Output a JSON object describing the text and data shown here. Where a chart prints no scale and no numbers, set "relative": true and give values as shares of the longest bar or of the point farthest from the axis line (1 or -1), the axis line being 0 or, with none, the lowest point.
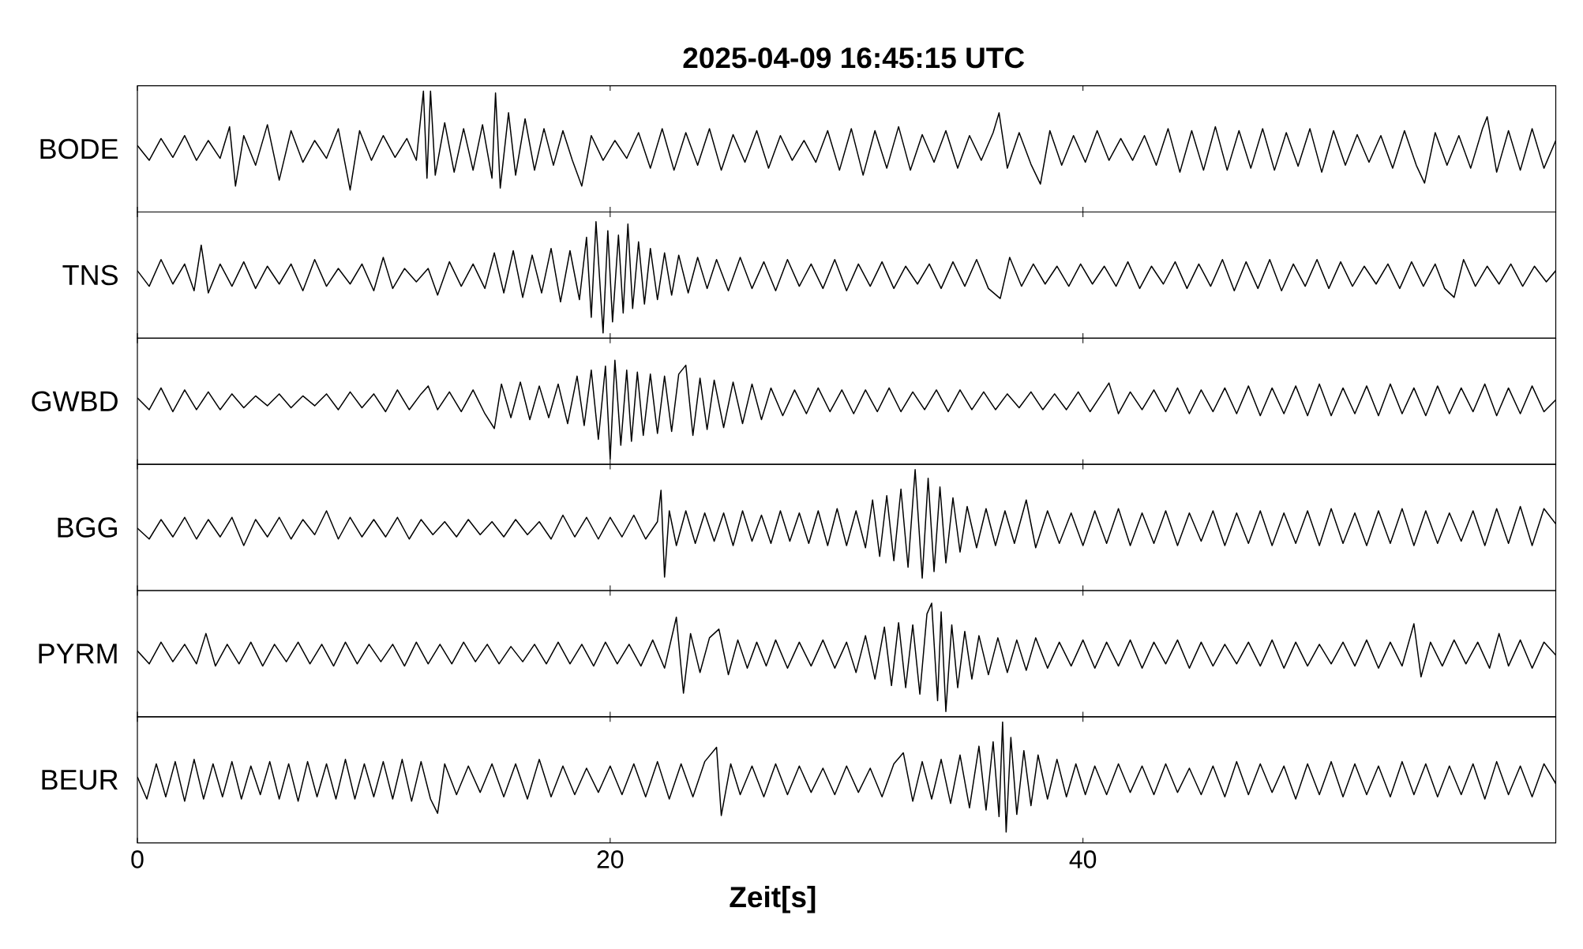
{
  "chart_data": [
    {
      "type": "line",
      "title": "2025-04-09 16:45:15 UTC",
      "ylabel": "BODE",
      "relative": true,
      "xlim": [
        0,
        60
      ],
      "xticks": [
        0,
        20,
        40
      ],
      "tick_labels": false,
      "color": "#000000",
      "x": [
        0,
        0.5,
        1.0,
        1.5,
        2.0,
        2.5,
        3.0,
        3.5,
        3.9,
        4.15,
        4.5,
        5.0,
        5.5,
        6.0,
        6.5,
        7.0,
        7.5,
        8.0,
        8.5,
        9.0,
        9.4,
        9.9,
        10.4,
        10.9,
        11.4,
        11.8,
        12.1,
        12.25,
        12.4,
        12.6,
        13.0,
        13.4,
        13.8,
        14.2,
        14.6,
        15.0,
        15.15,
        15.35,
        15.7,
        16.0,
        16.4,
        16.8,
        17.2,
        17.6,
        18.0,
        18.4,
        18.8,
        19.2,
        19.7,
        20.2,
        20.7,
        21.2,
        21.7,
        22.2,
        22.7,
        23.2,
        23.7,
        24.2,
        24.7,
        25.2,
        25.7,
        26.2,
        26.7,
        27.2,
        27.7,
        28.2,
        28.7,
        29.2,
        29.7,
        30.2,
        30.7,
        31.2,
        31.7,
        32.2,
        32.7,
        33.2,
        33.7,
        34.2,
        34.7,
        35.2,
        35.7,
        36.2,
        36.45,
        36.8,
        37.3,
        37.8,
        38.2,
        38.6,
        39.1,
        39.6,
        40.1,
        40.6,
        41.1,
        41.6,
        42.1,
        42.6,
        43.1,
        43.6,
        44.1,
        44.6,
        45.1,
        45.6,
        46.1,
        46.6,
        47.1,
        47.6,
        48.1,
        48.6,
        49.1,
        49.6,
        50.1,
        50.6,
        51.1,
        51.6,
        52.1,
        52.6,
        53.1,
        53.6,
        54.1,
        54.45,
        54.9,
        55.4,
        55.9,
        56.4,
        56.9,
        57.1,
        57.5,
        58.0,
        58.5,
        59.0,
        59.5,
        60
      ],
      "values": [
        0.45,
        0.3,
        0.52,
        0.33,
        0.55,
        0.3,
        0.5,
        0.32,
        0.64,
        0.04,
        0.55,
        0.25,
        0.66,
        0.1,
        0.6,
        0.28,
        0.5,
        0.32,
        0.62,
        0.0,
        0.6,
        0.3,
        0.55,
        0.33,
        0.52,
        0.3,
        1.0,
        0.12,
        1.0,
        0.15,
        0.68,
        0.18,
        0.62,
        0.2,
        0.66,
        0.12,
        0.98,
        0.02,
        0.78,
        0.15,
        0.72,
        0.2,
        0.62,
        0.25,
        0.6,
        0.3,
        0.04,
        0.55,
        0.3,
        0.5,
        0.32,
        0.58,
        0.22,
        0.62,
        0.2,
        0.58,
        0.25,
        0.62,
        0.2,
        0.56,
        0.28,
        0.6,
        0.22,
        0.55,
        0.3,
        0.5,
        0.28,
        0.6,
        0.2,
        0.62,
        0.15,
        0.6,
        0.22,
        0.64,
        0.2,
        0.56,
        0.28,
        0.6,
        0.22,
        0.55,
        0.3,
        0.58,
        0.78,
        0.22,
        0.58,
        0.26,
        0.06,
        0.6,
        0.25,
        0.55,
        0.28,
        0.6,
        0.3,
        0.52,
        0.3,
        0.55,
        0.25,
        0.62,
        0.18,
        0.6,
        0.2,
        0.64,
        0.2,
        0.6,
        0.22,
        0.62,
        0.2,
        0.58,
        0.24,
        0.62,
        0.18,
        0.6,
        0.25,
        0.56,
        0.28,
        0.55,
        0.22,
        0.6,
        0.25,
        0.07,
        0.58,
        0.25,
        0.55,
        0.22,
        0.62,
        0.74,
        0.18,
        0.6,
        0.2,
        0.62,
        0.22,
        0.5
      ]
    },
    {
      "type": "line",
      "ylabel": "TNS",
      "relative": true,
      "xlim": [
        0,
        60
      ],
      "xticks": [
        0,
        20,
        40
      ],
      "tick_labels": false,
      "color": "#000000",
      "x": [
        0,
        0.5,
        1.0,
        1.5,
        2.0,
        2.4,
        2.7,
        3.0,
        3.5,
        4.0,
        4.5,
        5.0,
        5.5,
        6.0,
        6.5,
        7.0,
        7.5,
        8.0,
        8.5,
        9.0,
        9.5,
        10.0,
        10.4,
        10.8,
        11.3,
        11.8,
        12.3,
        12.7,
        13.2,
        13.7,
        14.2,
        14.7,
        15.1,
        15.5,
        15.9,
        16.3,
        16.7,
        17.1,
        17.5,
        17.9,
        18.3,
        18.7,
        19.0,
        19.2,
        19.4,
        19.7,
        19.9,
        20.1,
        20.35,
        20.55,
        20.75,
        20.95,
        21.2,
        21.45,
        21.7,
        22.0,
        22.3,
        22.6,
        22.9,
        23.3,
        23.7,
        24.1,
        24.5,
        25.0,
        25.5,
        26.0,
        26.5,
        27.0,
        27.5,
        28.0,
        28.5,
        29.0,
        29.5,
        30.0,
        30.5,
        31.0,
        31.5,
        32.0,
        32.5,
        33.0,
        33.5,
        34.0,
        34.5,
        35.0,
        35.5,
        36.0,
        36.5,
        36.9,
        37.4,
        37.9,
        38.4,
        38.9,
        39.4,
        39.9,
        40.4,
        40.9,
        41.4,
        41.9,
        42.4,
        42.9,
        43.4,
        43.9,
        44.4,
        44.9,
        45.4,
        45.9,
        46.4,
        46.9,
        47.4,
        47.9,
        48.4,
        48.9,
        49.4,
        49.9,
        50.4,
        50.9,
        51.4,
        51.9,
        52.4,
        52.9,
        53.4,
        53.9,
        54.4,
        54.9,
        55.3,
        55.7,
        56.1,
        56.6,
        57.1,
        57.6,
        58.1,
        58.6,
        59.1,
        59.6,
        60
      ],
      "values": [
        0.56,
        0.42,
        0.66,
        0.44,
        0.62,
        0.38,
        0.79,
        0.36,
        0.62,
        0.42,
        0.64,
        0.4,
        0.6,
        0.44,
        0.62,
        0.38,
        0.66,
        0.42,
        0.58,
        0.44,
        0.62,
        0.38,
        0.68,
        0.4,
        0.58,
        0.46,
        0.58,
        0.34,
        0.64,
        0.42,
        0.62,
        0.4,
        0.72,
        0.36,
        0.74,
        0.32,
        0.7,
        0.36,
        0.76,
        0.28,
        0.74,
        0.3,
        0.86,
        0.14,
        1.0,
        0.0,
        0.92,
        0.1,
        0.88,
        0.18,
        0.98,
        0.22,
        0.82,
        0.26,
        0.76,
        0.3,
        0.72,
        0.34,
        0.7,
        0.36,
        0.68,
        0.4,
        0.66,
        0.38,
        0.68,
        0.4,
        0.64,
        0.38,
        0.66,
        0.42,
        0.62,
        0.4,
        0.66,
        0.38,
        0.62,
        0.42,
        0.64,
        0.4,
        0.6,
        0.44,
        0.62,
        0.4,
        0.64,
        0.42,
        0.66,
        0.4,
        0.31,
        0.68,
        0.42,
        0.62,
        0.44,
        0.6,
        0.42,
        0.62,
        0.44,
        0.6,
        0.42,
        0.64,
        0.4,
        0.6,
        0.44,
        0.64,
        0.4,
        0.62,
        0.42,
        0.66,
        0.38,
        0.64,
        0.4,
        0.66,
        0.38,
        0.62,
        0.42,
        0.66,
        0.4,
        0.64,
        0.42,
        0.6,
        0.44,
        0.62,
        0.4,
        0.64,
        0.42,
        0.62,
        0.4,
        0.32,
        0.66,
        0.42,
        0.6,
        0.44,
        0.62,
        0.42,
        0.6,
        0.46,
        0.56
      ]
    },
    {
      "type": "line",
      "ylabel": "GWBD",
      "relative": true,
      "xlim": [
        0,
        60
      ],
      "xticks": [
        0,
        20,
        40
      ],
      "tick_labels": false,
      "color": "#000000",
      "x": [
        0,
        0.5,
        1.0,
        1.5,
        2.0,
        2.5,
        3.0,
        3.5,
        4.0,
        4.5,
        5.0,
        5.5,
        6.0,
        6.5,
        7.0,
        7.5,
        8.0,
        8.5,
        9.0,
        9.5,
        10.0,
        10.5,
        11.0,
        11.5,
        12.0,
        12.3,
        12.7,
        13.2,
        13.7,
        14.2,
        14.7,
        15.1,
        15.4,
        15.8,
        16.2,
        16.6,
        17.0,
        17.4,
        17.8,
        18.2,
        18.6,
        18.9,
        19.2,
        19.5,
        19.8,
        20.0,
        20.2,
        20.45,
        20.7,
        20.9,
        21.15,
        21.4,
        21.7,
        22.0,
        22.3,
        22.6,
        22.9,
        23.2,
        23.5,
        23.8,
        24.1,
        24.4,
        24.8,
        25.2,
        25.6,
        26.0,
        26.4,
        26.8,
        27.3,
        27.8,
        28.3,
        28.8,
        29.3,
        29.8,
        30.3,
        30.8,
        31.3,
        31.8,
        32.3,
        32.8,
        33.3,
        33.8,
        34.3,
        34.8,
        35.3,
        35.8,
        36.3,
        36.8,
        37.3,
        37.8,
        38.3,
        38.8,
        39.3,
        39.8,
        40.3,
        40.8,
        41.1,
        41.5,
        42.0,
        42.5,
        43.0,
        43.5,
        44.0,
        44.5,
        45.0,
        45.5,
        46.0,
        46.5,
        47.0,
        47.5,
        48.0,
        48.5,
        49.0,
        49.5,
        50.0,
        50.5,
        51.0,
        51.5,
        52.0,
        52.5,
        53.0,
        53.5,
        54.0,
        54.5,
        55.0,
        55.5,
        56.0,
        56.5,
        57.0,
        57.5,
        58.0,
        58.5,
        59.0,
        59.5,
        60
      ],
      "values": [
        0.62,
        0.5,
        0.72,
        0.48,
        0.7,
        0.5,
        0.68,
        0.5,
        0.66,
        0.52,
        0.64,
        0.54,
        0.66,
        0.52,
        0.64,
        0.54,
        0.66,
        0.5,
        0.68,
        0.52,
        0.66,
        0.48,
        0.7,
        0.5,
        0.66,
        0.74,
        0.5,
        0.68,
        0.48,
        0.7,
        0.46,
        0.31,
        0.76,
        0.42,
        0.78,
        0.4,
        0.74,
        0.42,
        0.76,
        0.36,
        0.84,
        0.34,
        0.9,
        0.2,
        0.94,
        0.0,
        1.0,
        0.14,
        0.9,
        0.18,
        0.88,
        0.24,
        0.86,
        0.26,
        0.84,
        0.28,
        0.86,
        0.95,
        0.24,
        0.82,
        0.3,
        0.8,
        0.32,
        0.78,
        0.36,
        0.76,
        0.4,
        0.72,
        0.44,
        0.7,
        0.46,
        0.72,
        0.48,
        0.7,
        0.46,
        0.7,
        0.48,
        0.72,
        0.48,
        0.68,
        0.5,
        0.7,
        0.48,
        0.7,
        0.5,
        0.68,
        0.5,
        0.66,
        0.52,
        0.68,
        0.5,
        0.66,
        0.5,
        0.68,
        0.48,
        0.66,
        0.77,
        0.46,
        0.68,
        0.5,
        0.7,
        0.48,
        0.72,
        0.46,
        0.7,
        0.48,
        0.72,
        0.46,
        0.74,
        0.44,
        0.72,
        0.46,
        0.74,
        0.44,
        0.76,
        0.44,
        0.72,
        0.46,
        0.74,
        0.44,
        0.76,
        0.46,
        0.72,
        0.44,
        0.74,
        0.46,
        0.72,
        0.48,
        0.76,
        0.44,
        0.72,
        0.46,
        0.74,
        0.48,
        0.6
      ]
    },
    {
      "type": "line",
      "ylabel": "BGG",
      "relative": true,
      "xlim": [
        0,
        60
      ],
      "xticks": [
        0,
        20,
        40
      ],
      "tick_labels": false,
      "color": "#000000",
      "x": [
        0,
        0.5,
        1.0,
        1.5,
        2.0,
        2.5,
        3.0,
        3.5,
        4.0,
        4.5,
        5.0,
        5.5,
        6.0,
        6.5,
        7.0,
        7.5,
        8.0,
        8.5,
        9.0,
        9.5,
        10.0,
        10.5,
        11.0,
        11.5,
        12.0,
        12.5,
        13.0,
        13.5,
        14.0,
        14.5,
        15.0,
        15.5,
        16.0,
        16.5,
        17.0,
        17.5,
        18.0,
        18.5,
        19.0,
        19.5,
        20.0,
        20.5,
        21.0,
        21.5,
        22.0,
        22.15,
        22.3,
        22.5,
        22.8,
        23.2,
        23.6,
        24.0,
        24.4,
        24.8,
        25.2,
        25.6,
        26.0,
        26.4,
        26.8,
        27.2,
        27.6,
        28.0,
        28.4,
        28.8,
        29.2,
        29.6,
        30.0,
        30.4,
        30.8,
        31.1,
        31.4,
        31.7,
        32.0,
        32.3,
        32.6,
        32.9,
        33.2,
        33.45,
        33.7,
        33.95,
        34.2,
        34.5,
        34.8,
        35.1,
        35.5,
        35.9,
        36.3,
        36.7,
        37.1,
        37.6,
        38.0,
        38.5,
        39.0,
        39.5,
        40.0,
        40.5,
        41.0,
        41.5,
        42.0,
        42.5,
        43.0,
        43.5,
        44.0,
        44.5,
        45.0,
        45.5,
        46.0,
        46.5,
        47.0,
        47.5,
        48.0,
        48.5,
        49.0,
        49.5,
        50.0,
        50.5,
        51.0,
        51.5,
        52.0,
        52.5,
        53.0,
        53.5,
        54.0,
        54.5,
        55.0,
        55.5,
        56.0,
        56.5,
        57.0,
        57.5,
        58.0,
        58.5,
        59.0,
        59.5,
        60
      ],
      "values": [
        0.46,
        0.36,
        0.54,
        0.38,
        0.56,
        0.36,
        0.54,
        0.38,
        0.56,
        0.3,
        0.54,
        0.38,
        0.56,
        0.36,
        0.54,
        0.4,
        0.62,
        0.36,
        0.56,
        0.38,
        0.54,
        0.38,
        0.56,
        0.36,
        0.54,
        0.4,
        0.52,
        0.38,
        0.54,
        0.4,
        0.52,
        0.38,
        0.54,
        0.4,
        0.52,
        0.36,
        0.58,
        0.38,
        0.56,
        0.36,
        0.56,
        0.38,
        0.58,
        0.36,
        0.52,
        0.81,
        0.01,
        0.62,
        0.3,
        0.62,
        0.32,
        0.6,
        0.34,
        0.6,
        0.3,
        0.62,
        0.34,
        0.58,
        0.32,
        0.62,
        0.34,
        0.6,
        0.32,
        0.62,
        0.3,
        0.64,
        0.3,
        0.62,
        0.28,
        0.72,
        0.2,
        0.76,
        0.16,
        0.82,
        0.1,
        1.0,
        0.0,
        0.92,
        0.06,
        0.84,
        0.14,
        0.74,
        0.24,
        0.66,
        0.28,
        0.64,
        0.3,
        0.62,
        0.32,
        0.72,
        0.28,
        0.62,
        0.32,
        0.6,
        0.3,
        0.62,
        0.32,
        0.64,
        0.3,
        0.6,
        0.32,
        0.62,
        0.3,
        0.6,
        0.34,
        0.62,
        0.3,
        0.6,
        0.32,
        0.62,
        0.3,
        0.6,
        0.32,
        0.62,
        0.3,
        0.64,
        0.32,
        0.6,
        0.3,
        0.62,
        0.32,
        0.64,
        0.3,
        0.62,
        0.32,
        0.6,
        0.34,
        0.62,
        0.3,
        0.64,
        0.32,
        0.66,
        0.3,
        0.64,
        0.5
      ]
    },
    {
      "type": "line",
      "ylabel": "PYRM",
      "relative": true,
      "xlim": [
        0,
        60
      ],
      "xticks": [
        0,
        20,
        40
      ],
      "tick_labels": false,
      "color": "#000000",
      "x": [
        0,
        0.5,
        1.0,
        1.5,
        2.0,
        2.5,
        2.9,
        3.3,
        3.8,
        4.3,
        4.8,
        5.3,
        5.8,
        6.3,
        6.8,
        7.3,
        7.8,
        8.3,
        8.8,
        9.3,
        9.8,
        10.3,
        10.8,
        11.3,
        11.8,
        12.3,
        12.8,
        13.3,
        13.8,
        14.3,
        14.8,
        15.3,
        15.8,
        16.3,
        16.8,
        17.3,
        17.8,
        18.3,
        18.8,
        19.3,
        19.8,
        20.3,
        20.8,
        21.3,
        21.8,
        22.3,
        22.8,
        23.1,
        23.4,
        23.8,
        24.2,
        24.6,
        25.0,
        25.4,
        25.8,
        26.2,
        26.6,
        27.0,
        27.5,
        28.0,
        28.5,
        29.0,
        29.5,
        30.0,
        30.4,
        30.8,
        31.2,
        31.6,
        31.9,
        32.2,
        32.5,
        32.8,
        33.1,
        33.4,
        33.6,
        33.85,
        34.0,
        34.2,
        34.45,
        34.7,
        35.0,
        35.3,
        35.6,
        36.0,
        36.4,
        36.8,
        37.2,
        37.6,
        38.0,
        38.5,
        39.0,
        39.5,
        40.0,
        40.5,
        41.0,
        41.5,
        42.0,
        42.5,
        43.0,
        43.5,
        44.0,
        44.5,
        45.0,
        45.5,
        46.0,
        46.5,
        47.0,
        47.5,
        48.0,
        48.5,
        49.0,
        49.5,
        50.0,
        50.5,
        51.0,
        51.5,
        52.0,
        52.5,
        53.0,
        53.5,
        54.0,
        54.3,
        54.7,
        55.2,
        55.7,
        56.2,
        56.7,
        57.2,
        57.6,
        58.0,
        58.5,
        59.0,
        59.5,
        60
      ],
      "values": [
        0.56,
        0.44,
        0.64,
        0.46,
        0.62,
        0.44,
        0.72,
        0.42,
        0.62,
        0.44,
        0.64,
        0.42,
        0.62,
        0.46,
        0.64,
        0.44,
        0.62,
        0.42,
        0.64,
        0.44,
        0.62,
        0.46,
        0.62,
        0.42,
        0.64,
        0.44,
        0.62,
        0.44,
        0.64,
        0.46,
        0.62,
        0.44,
        0.6,
        0.46,
        0.62,
        0.44,
        0.64,
        0.44,
        0.62,
        0.42,
        0.64,
        0.44,
        0.62,
        0.42,
        0.66,
        0.4,
        0.87,
        0.17,
        0.72,
        0.36,
        0.68,
        0.76,
        0.34,
        0.66,
        0.4,
        0.64,
        0.42,
        0.66,
        0.4,
        0.64,
        0.42,
        0.66,
        0.4,
        0.64,
        0.36,
        0.7,
        0.3,
        0.78,
        0.24,
        0.82,
        0.22,
        0.8,
        0.16,
        0.9,
        1.0,
        0.1,
        0.92,
        0.0,
        0.8,
        0.22,
        0.74,
        0.3,
        0.7,
        0.34,
        0.68,
        0.36,
        0.66,
        0.38,
        0.68,
        0.4,
        0.64,
        0.42,
        0.66,
        0.4,
        0.64,
        0.42,
        0.66,
        0.4,
        0.64,
        0.44,
        0.66,
        0.4,
        0.64,
        0.42,
        0.62,
        0.44,
        0.64,
        0.42,
        0.66,
        0.4,
        0.64,
        0.42,
        0.62,
        0.44,
        0.64,
        0.42,
        0.66,
        0.4,
        0.64,
        0.42,
        0.81,
        0.32,
        0.64,
        0.42,
        0.66,
        0.44,
        0.64,
        0.4,
        0.72,
        0.42,
        0.66,
        0.4,
        0.64,
        0.52
      ]
    },
    {
      "type": "line",
      "ylabel": "BEUR",
      "xlabel": "Zeit[s]",
      "relative": true,
      "xlim": [
        0,
        60
      ],
      "xticks": [
        0,
        20,
        40
      ],
      "tick_labels": "x",
      "color": "#000000",
      "x": [
        0,
        0.4,
        0.8,
        1.2,
        1.6,
        2.0,
        2.4,
        2.8,
        3.2,
        3.6,
        4.0,
        4.4,
        4.8,
        5.2,
        5.6,
        6.0,
        6.4,
        6.8,
        7.2,
        7.6,
        8.0,
        8.4,
        8.8,
        9.2,
        9.6,
        10.0,
        10.4,
        10.8,
        11.2,
        11.6,
        12.0,
        12.4,
        12.7,
        13.0,
        13.5,
        14.0,
        14.5,
        15.0,
        15.5,
        16.0,
        16.5,
        17.0,
        17.5,
        18.0,
        18.5,
        19.0,
        19.5,
        20.0,
        20.5,
        21.0,
        21.5,
        22.0,
        22.5,
        23.0,
        23.5,
        24.0,
        24.5,
        24.7,
        25.1,
        25.5,
        26.0,
        26.5,
        27.0,
        27.5,
        28.0,
        28.5,
        29.0,
        29.5,
        30.0,
        30.5,
        31.0,
        31.5,
        32.0,
        32.4,
        32.8,
        33.2,
        33.6,
        34.0,
        34.4,
        34.8,
        35.2,
        35.6,
        35.9,
        36.2,
        36.45,
        36.6,
        36.75,
        36.95,
        37.2,
        37.5,
        37.8,
        38.1,
        38.5,
        38.9,
        39.3,
        39.7,
        40.1,
        40.5,
        41.0,
        41.5,
        42.0,
        42.5,
        43.0,
        43.5,
        44.0,
        44.5,
        45.0,
        45.5,
        46.0,
        46.5,
        47.0,
        47.5,
        48.0,
        48.5,
        49.0,
        49.5,
        50.0,
        50.5,
        51.0,
        51.5,
        52.0,
        52.5,
        53.0,
        53.5,
        54.0,
        54.5,
        55.0,
        55.5,
        56.0,
        56.5,
        57.0,
        57.5,
        58.0,
        58.5,
        59.0,
        59.5,
        60
      ],
      "values": [
        0.5,
        0.3,
        0.62,
        0.32,
        0.64,
        0.28,
        0.66,
        0.3,
        0.62,
        0.32,
        0.64,
        0.3,
        0.6,
        0.34,
        0.64,
        0.3,
        0.62,
        0.28,
        0.64,
        0.32,
        0.62,
        0.3,
        0.66,
        0.3,
        0.62,
        0.32,
        0.64,
        0.3,
        0.66,
        0.28,
        0.64,
        0.3,
        0.17,
        0.62,
        0.34,
        0.6,
        0.36,
        0.62,
        0.32,
        0.62,
        0.3,
        0.66,
        0.32,
        0.6,
        0.34,
        0.58,
        0.36,
        0.6,
        0.34,
        0.62,
        0.32,
        0.64,
        0.3,
        0.62,
        0.32,
        0.64,
        0.77,
        0.15,
        0.62,
        0.34,
        0.6,
        0.32,
        0.62,
        0.34,
        0.6,
        0.36,
        0.58,
        0.34,
        0.6,
        0.36,
        0.58,
        0.32,
        0.62,
        0.72,
        0.28,
        0.64,
        0.3,
        0.66,
        0.26,
        0.7,
        0.22,
        0.78,
        0.2,
        0.82,
        0.14,
        1.0,
        0.0,
        0.86,
        0.16,
        0.74,
        0.24,
        0.7,
        0.3,
        0.66,
        0.32,
        0.62,
        0.34,
        0.6,
        0.34,
        0.62,
        0.36,
        0.6,
        0.34,
        0.62,
        0.36,
        0.58,
        0.34,
        0.6,
        0.32,
        0.64,
        0.34,
        0.62,
        0.36,
        0.6,
        0.3,
        0.62,
        0.34,
        0.64,
        0.32,
        0.62,
        0.34,
        0.6,
        0.32,
        0.64,
        0.34,
        0.62,
        0.32,
        0.6,
        0.34,
        0.62,
        0.3,
        0.64,
        0.34,
        0.6,
        0.32,
        0.62,
        0.44
      ]
    }
  ]
}
